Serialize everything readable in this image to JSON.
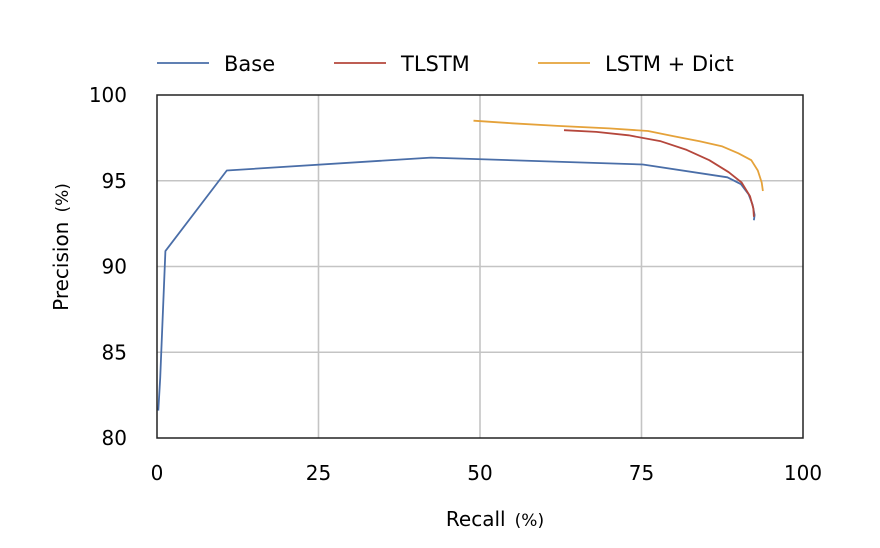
{
  "chart_data": {
    "type": "line",
    "xlabel": "Recall",
    "xunit": "(%)",
    "ylabel": "Precision",
    "yunit": "(%)",
    "xlim": [
      0,
      100
    ],
    "ylim": [
      80,
      100
    ],
    "xticks": [
      0,
      25,
      50,
      75,
      100
    ],
    "yticks": [
      80,
      85,
      90,
      95,
      100
    ],
    "grid": true,
    "legend_position": "top",
    "series": [
      {
        "name": "Base",
        "color": "#4a6ea8",
        "points": [
          [
            0.2,
            81.6
          ],
          [
            0.5,
            83.5
          ],
          [
            1.3,
            90.9
          ],
          [
            10.8,
            95.6
          ],
          [
            42.4,
            96.35
          ],
          [
            75.2,
            95.95
          ],
          [
            88.3,
            95.2
          ],
          [
            90.4,
            94.8
          ],
          [
            91.6,
            94.2
          ],
          [
            92.2,
            93.6
          ],
          [
            92.5,
            93.0
          ],
          [
            92.4,
            92.7
          ]
        ]
      },
      {
        "name": "TLSTM",
        "color": "#b5473c",
        "points": [
          [
            63.0,
            97.95
          ],
          [
            68.0,
            97.85
          ],
          [
            73.0,
            97.65
          ],
          [
            78.0,
            97.3
          ],
          [
            82.0,
            96.8
          ],
          [
            85.5,
            96.2
          ],
          [
            88.5,
            95.5
          ],
          [
            90.5,
            94.9
          ],
          [
            91.8,
            94.1
          ],
          [
            92.3,
            93.4
          ],
          [
            92.4,
            92.9
          ]
        ]
      },
      {
        "name": "LSTM + Dict",
        "color": "#e5a23a",
        "points": [
          [
            49.0,
            98.5
          ],
          [
            55.0,
            98.35
          ],
          [
            62.0,
            98.2
          ],
          [
            70.0,
            98.05
          ],
          [
            76.0,
            97.9
          ],
          [
            80.0,
            97.6
          ],
          [
            84.0,
            97.3
          ],
          [
            87.5,
            97.0
          ],
          [
            90.0,
            96.6
          ],
          [
            92.0,
            96.2
          ],
          [
            93.0,
            95.6
          ],
          [
            93.6,
            94.9
          ],
          [
            93.8,
            94.4
          ]
        ]
      }
    ]
  }
}
